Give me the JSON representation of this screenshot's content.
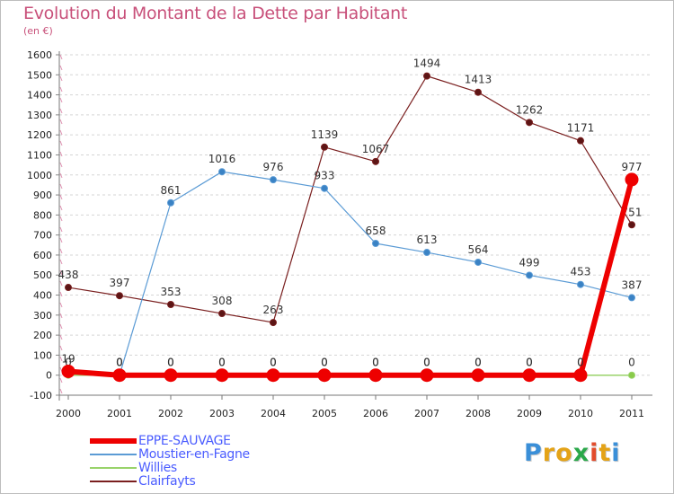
{
  "chart_data": {
    "type": "line",
    "title": "Evolution du Montant de la Dette par Habitant",
    "subtitle": "(en €)",
    "ylim": [
      -100,
      1600
    ],
    "yticks": [
      -100,
      0,
      100,
      200,
      300,
      400,
      500,
      600,
      700,
      800,
      900,
      1000,
      1100,
      1200,
      1300,
      1400,
      1500,
      1600
    ],
    "x": [
      "2000",
      "2001",
      "2002",
      "2003",
      "2004",
      "2005",
      "2006",
      "2007",
      "2008",
      "2009",
      "2010",
      "2011"
    ],
    "grid": "horizontal dashed",
    "legend_position": "bottom-left",
    "series": [
      {
        "name": "Clairfayts",
        "color": "#7a1f1f",
        "marker": "#5c1515",
        "width": 1.2,
        "radius": 3.5,
        "values": [
          438,
          397,
          353,
          308,
          263,
          1139,
          1067,
          1494,
          1413,
          1262,
          1171,
          751
        ],
        "labels": [
          "438",
          "397",
          "353",
          "308",
          "263",
          "1139",
          "1067",
          "1494",
          "1413",
          "1262",
          "1171",
          "751"
        ]
      },
      {
        "name": "Moustier-en-Fagne",
        "color": "#5b9bd5",
        "marker": "#3a82c4",
        "width": 1.2,
        "radius": 3.5,
        "values": [
          null,
          0,
          861,
          1016,
          976,
          933,
          658,
          613,
          564,
          499,
          453,
          387
        ],
        "labels": [
          "",
          "0",
          "861",
          "1016",
          "976",
          "933",
          "658",
          "613",
          "564",
          "499",
          "453",
          "387"
        ]
      },
      {
        "name": "Willies",
        "color": "#99d36a",
        "marker": "#8acb4a",
        "width": 1.5,
        "radius": 3.5,
        "values": [
          0,
          0,
          0,
          0,
          0,
          0,
          0,
          0,
          0,
          0,
          0,
          0
        ],
        "labels": [
          "0",
          "0",
          "0",
          "0",
          "0",
          "0",
          "0",
          "0",
          "0",
          "0",
          "0",
          "0"
        ]
      },
      {
        "name": "EPPE-SAUVAGE",
        "color": "#ee0000",
        "marker": "#ee0000",
        "width": 6,
        "radius": 6,
        "values": [
          19,
          0,
          0,
          0,
          0,
          0,
          0,
          0,
          0,
          0,
          0,
          977
        ],
        "labels": [
          "19",
          "0",
          "0",
          "0",
          "0",
          "0",
          "0",
          "0",
          "0",
          "0",
          "0",
          "977"
        ]
      }
    ]
  },
  "legend": [
    {
      "name": "EPPE-SAUVAGE",
      "color": "#ee0000"
    },
    {
      "name": "Moustier-en-Fagne",
      "color": "#5b9bd5"
    },
    {
      "name": "Willies",
      "color": "#99d36a"
    },
    {
      "name": "Clairfayts",
      "color": "#7a1f1f"
    }
  ],
  "logo": {
    "text": "Proxiti",
    "letters": [
      "P",
      "r",
      "o",
      "x",
      "i",
      "t",
      "i"
    ],
    "colors": [
      "#3a8fd8",
      "#e4a317",
      "#e4a317",
      "#2aa84a",
      "#e24c2c",
      "#e4a317",
      "#3a8fd8"
    ]
  }
}
